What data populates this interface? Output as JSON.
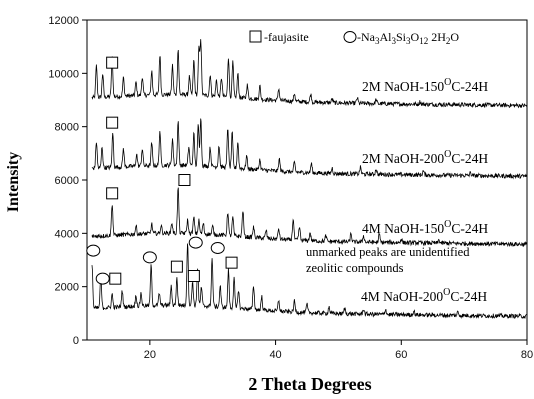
{
  "chart_data": {
    "type": "line",
    "xlabel": "2 Theta Degrees",
    "ylabel": "Intensity",
    "xlim": [
      10,
      80
    ],
    "ylim": [
      0,
      12000
    ],
    "x_ticks": [
      20,
      40,
      60,
      80
    ],
    "y_ticks": [
      0,
      2000,
      4000,
      6000,
      8000,
      10000,
      12000
    ],
    "grid": false,
    "legend": {
      "position": "top-right",
      "faujasite": "-faujasite",
      "other_prefix": "-Na",
      "other_sub1": "3",
      "other_mid1": "Al",
      "other_sub2": "3",
      "other_mid2": "Si",
      "other_sub3": "3",
      "other_mid3": "O",
      "other_sub4": "12",
      "other_mid4": " 2H",
      "other_sub5": "2",
      "other_suffix": "O"
    },
    "annotation_line1": "unmarked peaks are unidentified",
    "annotation_line2": "zeolitic compounds",
    "peaks": [
      {
        "two_theta": 12.2,
        "rel": 0.65
      },
      {
        "two_theta": 15.6,
        "rel": 0.45
      },
      {
        "two_theta": 18.5,
        "rel": 0.35
      },
      {
        "two_theta": 20.2,
        "rel": 0.45
      },
      {
        "two_theta": 22.1,
        "rel": 0.25
      },
      {
        "two_theta": 23.4,
        "rel": 0.7
      },
      {
        "two_theta": 26.8,
        "rel": 0.55
      },
      {
        "two_theta": 27.6,
        "rel": 0.4
      },
      {
        "two_theta": 29.4,
        "rel": 0.3
      },
      {
        "two_theta": 30.6,
        "rel": 0.4
      },
      {
        "two_theta": 31.3,
        "rel": 0.5
      },
      {
        "two_theta": 32.0,
        "rel": 0.35
      },
      {
        "two_theta": 33.9,
        "rel": 0.25
      },
      {
        "two_theta": 37.7,
        "rel": 0.25
      },
      {
        "two_theta": 40.9,
        "rel": 0.2
      },
      {
        "two_theta": 44.0,
        "rel": 0.18
      },
      {
        "two_theta": 52.0,
        "rel": 0.12
      },
      {
        "two_theta": 54.0,
        "rel": 0.12
      },
      {
        "two_theta": 57.5,
        "rel": 0.1
      },
      {
        "two_theta": 67.0,
        "rel": 0.08
      }
    ],
    "series": [
      {
        "label_main": "2M NaOH-150",
        "label_sup": "O",
        "label_end": "C-24H",
        "baseline": 9000,
        "peaks": [
          {
            "two_theta": 11.5,
            "height": 1200
          },
          {
            "two_theta": 12.5,
            "height": 900
          },
          {
            "two_theta": 14.0,
            "height": 1500
          },
          {
            "two_theta": 15.8,
            "height": 700
          },
          {
            "two_theta": 17.8,
            "height": 500
          },
          {
            "two_theta": 18.8,
            "height": 700
          },
          {
            "two_theta": 20.3,
            "height": 900
          },
          {
            "two_theta": 21.6,
            "height": 1500
          },
          {
            "two_theta": 23.6,
            "height": 1100
          },
          {
            "two_theta": 24.5,
            "height": 1700
          },
          {
            "two_theta": 26.3,
            "height": 700
          },
          {
            "two_theta": 27.0,
            "height": 1300
          },
          {
            "two_theta": 27.8,
            "height": 1700
          },
          {
            "two_theta": 28.1,
            "height": 2100
          },
          {
            "two_theta": 29.6,
            "height": 800
          },
          {
            "two_theta": 30.6,
            "height": 600
          },
          {
            "two_theta": 31.4,
            "height": 700
          },
          {
            "two_theta": 32.5,
            "height": 1500
          },
          {
            "two_theta": 33.2,
            "height": 1300
          },
          {
            "two_theta": 34.0,
            "height": 900
          },
          {
            "two_theta": 35.5,
            "height": 500
          },
          {
            "two_theta": 37.5,
            "height": 500
          },
          {
            "two_theta": 40.5,
            "height": 450
          },
          {
            "two_theta": 43.0,
            "height": 300
          },
          {
            "two_theta": 45.6,
            "height": 300
          },
          {
            "two_theta": 49.0,
            "height": 150
          },
          {
            "two_theta": 53.0,
            "height": 200
          },
          {
            "two_theta": 56.0,
            "height": 150
          },
          {
            "two_theta": 63.0,
            "height": 100
          }
        ]
      },
      {
        "label_main": "2M NaOH-200",
        "label_sup": "O",
        "label_end": "C-24H",
        "baseline": 6350,
        "peaks": [
          {
            "two_theta": 11.5,
            "height": 1000
          },
          {
            "two_theta": 12.4,
            "height": 800
          },
          {
            "two_theta": 14.1,
            "height": 1300
          },
          {
            "two_theta": 15.8,
            "height": 700
          },
          {
            "two_theta": 17.9,
            "height": 450
          },
          {
            "two_theta": 18.8,
            "height": 650
          },
          {
            "two_theta": 20.3,
            "height": 850
          },
          {
            "two_theta": 21.6,
            "height": 1300
          },
          {
            "two_theta": 23.6,
            "height": 1000
          },
          {
            "two_theta": 24.5,
            "height": 1650
          },
          {
            "two_theta": 26.2,
            "height": 700
          },
          {
            "two_theta": 27.0,
            "height": 1200
          },
          {
            "two_theta": 27.7,
            "height": 1550
          },
          {
            "two_theta": 28.1,
            "height": 1850
          },
          {
            "two_theta": 29.6,
            "height": 700
          },
          {
            "two_theta": 31.0,
            "height": 800
          },
          {
            "two_theta": 32.4,
            "height": 1500
          },
          {
            "two_theta": 33.1,
            "height": 1300
          },
          {
            "two_theta": 34.0,
            "height": 1000
          },
          {
            "two_theta": 35.4,
            "height": 500
          },
          {
            "two_theta": 37.5,
            "height": 400
          },
          {
            "two_theta": 40.6,
            "height": 450
          },
          {
            "two_theta": 43.0,
            "height": 350
          },
          {
            "two_theta": 45.7,
            "height": 350
          },
          {
            "two_theta": 49.0,
            "height": 200
          },
          {
            "two_theta": 53.5,
            "height": 250
          },
          {
            "two_theta": 56.0,
            "height": 200
          },
          {
            "two_theta": 63.5,
            "height": 150
          },
          {
            "two_theta": 71.0,
            "height": 100
          }
        ]
      },
      {
        "label_main": "4M NaOH-150",
        "label_sup": "O",
        "label_end": "C-24H",
        "baseline": 3800,
        "peaks": [
          {
            "two_theta": 14.0,
            "height": 1200
          },
          {
            "two_theta": 17.8,
            "height": 300
          },
          {
            "two_theta": 20.3,
            "height": 350
          },
          {
            "two_theta": 21.8,
            "height": 300
          },
          {
            "two_theta": 23.5,
            "height": 400
          },
          {
            "two_theta": 24.5,
            "height": 1700
          },
          {
            "two_theta": 26.0,
            "height": 500
          },
          {
            "two_theta": 27.0,
            "height": 600
          },
          {
            "two_theta": 27.8,
            "height": 500
          },
          {
            "two_theta": 28.5,
            "height": 400
          },
          {
            "two_theta": 30.0,
            "height": 300
          },
          {
            "two_theta": 32.4,
            "height": 900
          },
          {
            "two_theta": 33.2,
            "height": 700
          },
          {
            "two_theta": 34.8,
            "height": 1000
          },
          {
            "two_theta": 36.5,
            "height": 400
          },
          {
            "two_theta": 38.5,
            "height": 300
          },
          {
            "two_theta": 40.5,
            "height": 400
          },
          {
            "two_theta": 42.8,
            "height": 800
          },
          {
            "two_theta": 43.8,
            "height": 500
          },
          {
            "two_theta": 45.5,
            "height": 300
          },
          {
            "two_theta": 48.0,
            "height": 200
          },
          {
            "two_theta": 52.0,
            "height": 300
          },
          {
            "two_theta": 54.0,
            "height": 250
          },
          {
            "two_theta": 56.5,
            "height": 300
          },
          {
            "two_theta": 60.0,
            "height": 150
          },
          {
            "two_theta": 66.0,
            "height": 120
          }
        ]
      },
      {
        "label_main": "4M NaOH-200",
        "label_sup": "O",
        "label_end": "C-24H",
        "baseline": 1100,
        "peaks": [
          {
            "two_theta": 10.8,
            "height": 1700
          },
          {
            "two_theta": 12.2,
            "height": 1200
          },
          {
            "two_theta": 14.0,
            "height": 500
          },
          {
            "two_theta": 15.6,
            "height": 600
          },
          {
            "two_theta": 17.8,
            "height": 400
          },
          {
            "two_theta": 18.6,
            "height": 500
          },
          {
            "two_theta": 20.2,
            "height": 1500
          },
          {
            "two_theta": 21.5,
            "height": 450
          },
          {
            "two_theta": 23.4,
            "height": 700
          },
          {
            "two_theta": 24.3,
            "height": 1000
          },
          {
            "two_theta": 26.0,
            "height": 2400
          },
          {
            "two_theta": 26.8,
            "height": 900
          },
          {
            "two_theta": 27.6,
            "height": 1400
          },
          {
            "two_theta": 28.2,
            "height": 700
          },
          {
            "two_theta": 29.9,
            "height": 1800
          },
          {
            "two_theta": 31.2,
            "height": 800
          },
          {
            "two_theta": 32.5,
            "height": 1400
          },
          {
            "two_theta": 33.4,
            "height": 1100
          },
          {
            "two_theta": 34.1,
            "height": 700
          },
          {
            "two_theta": 36.5,
            "height": 900
          },
          {
            "two_theta": 37.8,
            "height": 500
          },
          {
            "two_theta": 40.5,
            "height": 400
          },
          {
            "two_theta": 43.0,
            "height": 400
          },
          {
            "two_theta": 45.0,
            "height": 300
          },
          {
            "two_theta": 48.5,
            "height": 250
          },
          {
            "two_theta": 51.0,
            "height": 200
          },
          {
            "two_theta": 54.0,
            "height": 200
          },
          {
            "two_theta": 57.5,
            "height": 200
          },
          {
            "two_theta": 62.0,
            "height": 150
          },
          {
            "two_theta": 69.0,
            "height": 120
          }
        ]
      }
    ],
    "markers": [
      {
        "shape": "square",
        "two_theta": 14.0,
        "y": 10400
      },
      {
        "shape": "square",
        "two_theta": 14.0,
        "y": 8150
      },
      {
        "shape": "square",
        "two_theta": 14.0,
        "y": 5500
      },
      {
        "shape": "square",
        "two_theta": 25.5,
        "y": 6000
      },
      {
        "shape": "square",
        "two_theta": 14.5,
        "y": 2300
      },
      {
        "shape": "square",
        "two_theta": 24.3,
        "y": 2750
      },
      {
        "shape": "square",
        "two_theta": 27.0,
        "y": 2400
      },
      {
        "shape": "square",
        "two_theta": 33.0,
        "y": 2900
      },
      {
        "shape": "circle",
        "two_theta": 11.0,
        "y": 3350
      },
      {
        "shape": "circle",
        "two_theta": 12.5,
        "y": 2300
      },
      {
        "shape": "circle",
        "two_theta": 20.0,
        "y": 3100
      },
      {
        "shape": "circle",
        "two_theta": 27.3,
        "y": 3650
      },
      {
        "shape": "circle",
        "two_theta": 30.8,
        "y": 3450
      }
    ]
  }
}
